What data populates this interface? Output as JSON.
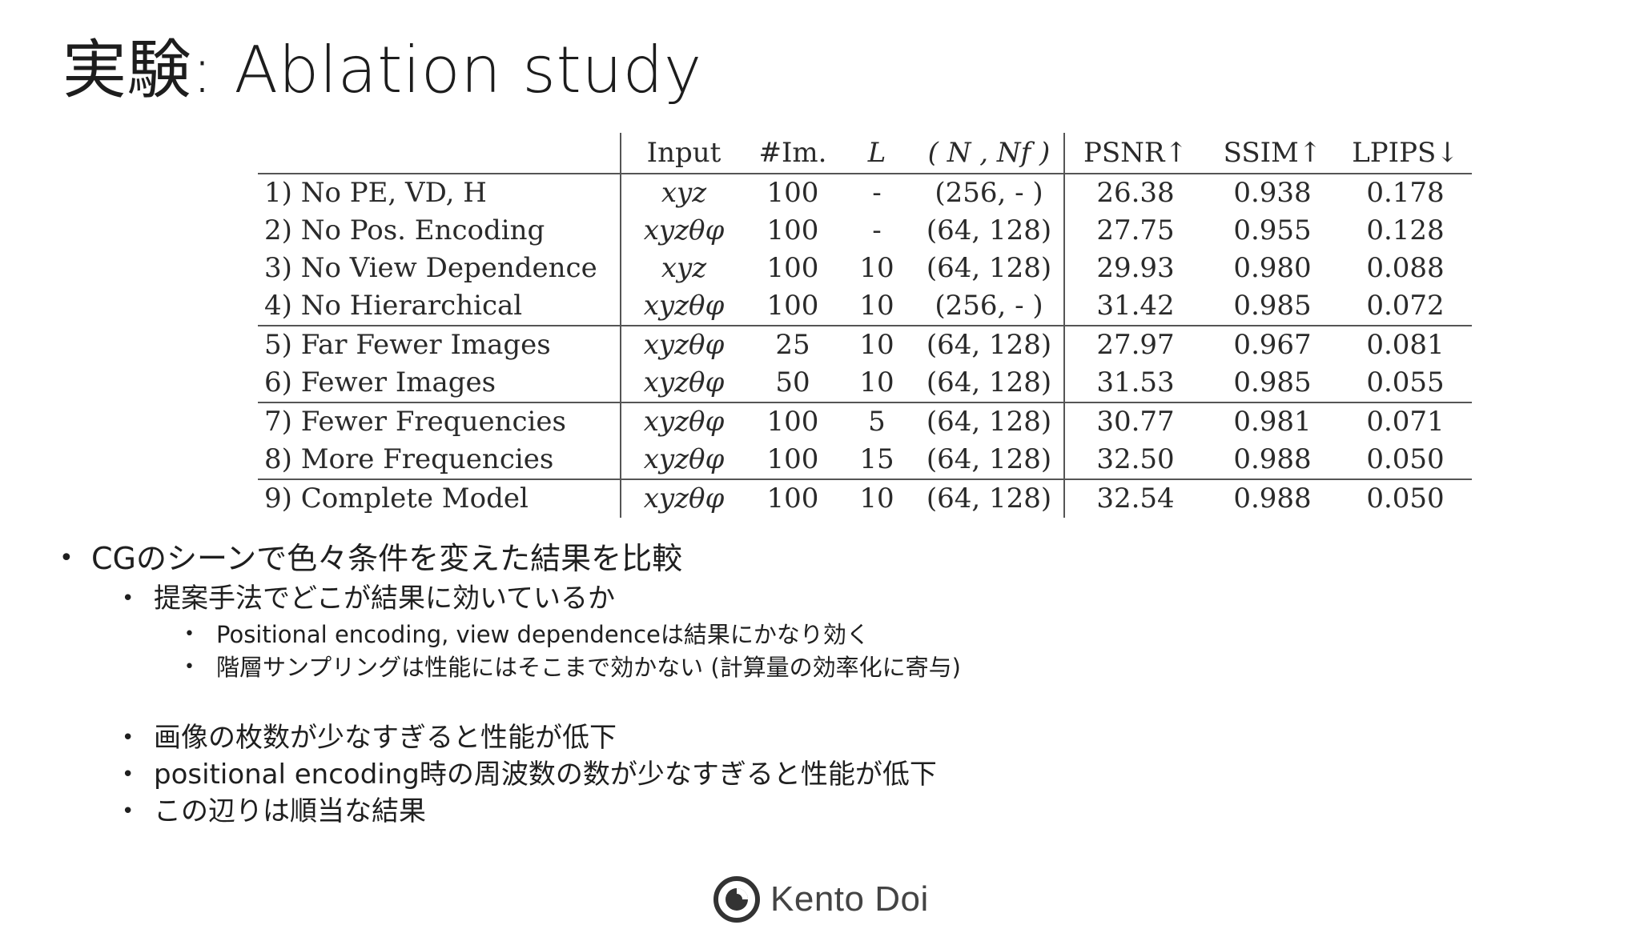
{
  "title": "実験: Ablation study",
  "table": {
    "headers": [
      "",
      "Input",
      "#Im.",
      "L",
      "( N , Nf )",
      "PSNR↑",
      "SSIM↑",
      "LPIPS↓"
    ],
    "rows": [
      {
        "name": "1) No PE, VD, H",
        "input": "xyz",
        "im": "100",
        "L": "-",
        "n": "(256, - )",
        "psnr": "26.38",
        "ssim": "0.938",
        "lpips": "0.178"
      },
      {
        "name": "2) No Pos. Encoding",
        "input": "xyzθφ",
        "im": "100",
        "L": "-",
        "n": "(64, 128)",
        "psnr": "27.75",
        "ssim": "0.955",
        "lpips": "0.128"
      },
      {
        "name": "3) No View Dependence",
        "input": "xyz",
        "im": "100",
        "L": "10",
        "n": "(64, 128)",
        "psnr": "29.93",
        "ssim": "0.980",
        "lpips": "0.088"
      },
      {
        "name": "4) No Hierarchical",
        "input": "xyzθφ",
        "im": "100",
        "L": "10",
        "n": "(256, - )",
        "psnr": "31.42",
        "ssim": "0.985",
        "lpips": "0.072"
      },
      {
        "name": "5) Far Fewer Images",
        "input": "xyzθφ",
        "im": "25",
        "L": "10",
        "n": "(64, 128)",
        "psnr": "27.97",
        "ssim": "0.967",
        "lpips": "0.081"
      },
      {
        "name": "6) Fewer Images",
        "input": "xyzθφ",
        "im": "50",
        "L": "10",
        "n": "(64, 128)",
        "psnr": "31.53",
        "ssim": "0.985",
        "lpips": "0.055"
      },
      {
        "name": "7) Fewer Frequencies",
        "input": "xyzθφ",
        "im": "100",
        "L": "5",
        "n": "(64, 128)",
        "psnr": "30.77",
        "ssim": "0.981",
        "lpips": "0.071"
      },
      {
        "name": "8) More Frequencies",
        "input": "xyzθφ",
        "im": "100",
        "L": "15",
        "n": "(64, 128)",
        "psnr": "32.50",
        "ssim": "0.988",
        "lpips": "0.050"
      },
      {
        "name": "9) Complete Model",
        "input": "xyzθφ",
        "im": "100",
        "L": "10",
        "n": "(64, 128)",
        "psnr": "32.54",
        "ssim": "0.988",
        "lpips": "0.050"
      }
    ]
  },
  "bullets": [
    "CGのシーンで色々条件を変えた結果を比較",
    "提案手法でどこが結果に効いているか",
    "Positional encoding, view dependenceは結果にかなり効く",
    "階層サンプリングは性能にはそこまで効かない (計算量の効率化に寄与)",
    "画像の枚数が少なすぎると性能が低下",
    "positional encoding時の周波数の数が少なすぎると性能が低下",
    "この辺りは順当な結果"
  ],
  "bullet_marker": "•",
  "footer": {
    "logo_text": "Kento Doi",
    "icon": "kento-doi-logo-icon"
  }
}
